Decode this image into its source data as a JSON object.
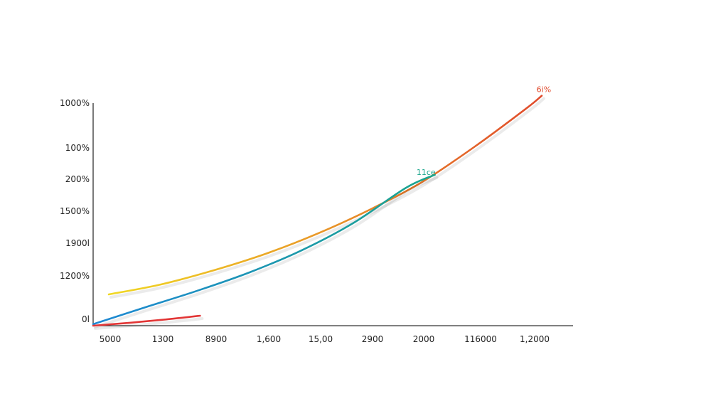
{
  "chart_data": {
    "type": "line",
    "title": "",
    "xlabel": "",
    "ylabel": "",
    "grid": false,
    "legend": "none",
    "x_ticks": [
      "5000",
      "1300",
      "8900",
      "1,600",
      "15,00",
      "2900",
      "2000",
      "116000",
      "1,2000"
    ],
    "y_ticks": [
      "1000%",
      "100%",
      "200%",
      "1500%",
      "1900l",
      "1200%",
      "0l"
    ],
    "xlim": [
      0,
      9.2
    ],
    "ylim": [
      0,
      6.3
    ],
    "series": [
      {
        "color_start": "#f0d824",
        "color_end": "#e04a2c",
        "x": [
          0.3,
          1.3,
          2.3,
          3.3,
          4.3,
          5.3,
          6.3,
          7.3,
          8.3,
          8.6
        ],
        "y": [
          0.85,
          1.12,
          1.5,
          1.95,
          2.5,
          3.15,
          3.9,
          4.85,
          5.9,
          6.25
        ]
      },
      {
        "color_start": "#1e88d4",
        "color_end": "#1aa58c",
        "x": [
          0.0,
          1.0,
          2.0,
          3.0,
          4.0,
          5.0,
          6.0,
          6.55
        ],
        "y": [
          0.04,
          0.5,
          0.95,
          1.45,
          2.05,
          2.8,
          3.75,
          4.1
        ]
      },
      {
        "color_start": "#e23636",
        "color_end": "#e23636",
        "x": [
          0.0,
          0.7,
          1.4,
          2.05
        ],
        "y": [
          0.0,
          0.08,
          0.17,
          0.27
        ]
      }
    ],
    "annotations": [
      {
        "text": "6i%",
        "x": 8.5,
        "y": 6.35,
        "color": "#e04a2c"
      },
      {
        "text": "11ce",
        "x": 6.2,
        "y": 4.1,
        "color": "#1aa58c"
      }
    ]
  }
}
